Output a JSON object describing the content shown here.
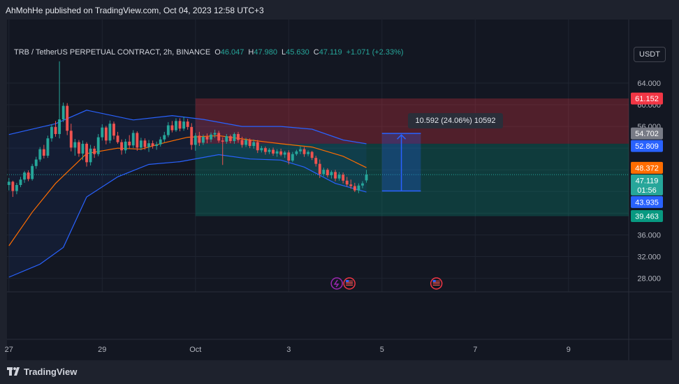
{
  "header": {
    "publish_text": "AhMohHe published on TradingView.com, Oct 04, 2023 12:58 UTC+3"
  },
  "legend": {
    "symbol": "TRB / TetherUS PERPETUAL CONTRACT, 2h, BINANCE",
    "o_label": "O",
    "o_value": "46.047",
    "h_label": "H",
    "h_value": "47.980",
    "l_label": "L",
    "l_value": "45.630",
    "c_label": "C",
    "c_value": "47.119",
    "change": "+1.071 (+2.33%)"
  },
  "currency_button": "USDT",
  "measure_label": "10.592 (24.06%) 10592",
  "footer": {
    "brand": "TradingView"
  },
  "colors": {
    "background": "#131722",
    "up": "#26a69a",
    "down": "#ef5350",
    "band": "#2962ff",
    "basis": "#ff6d00",
    "stop_zone": "#f23645",
    "target_zone": "#089981"
  },
  "chart_data": {
    "type": "candlestick",
    "symbol": "TRB / TetherUS PERPETUAL CONTRACT",
    "interval": "2h",
    "exchange": "BINANCE",
    "ylim": [
      25.5,
      68.5
    ],
    "y_ticks": [
      28,
      32,
      36,
      40,
      44,
      48,
      52,
      56,
      60,
      64
    ],
    "y_tick_labels": [
      "28.000",
      "32.000",
      "36.000",
      "40.000",
      "44.000",
      "48.000",
      "52.000",
      "56.000",
      "60.000",
      "64.000"
    ],
    "x_ticks": [
      {
        "label": "27",
        "t": 0
      },
      {
        "label": "29",
        "t": 24
      },
      {
        "label": "Oct",
        "t": 48
      },
      {
        "label": "3",
        "t": 72
      },
      {
        "label": "5",
        "t": 96
      },
      {
        "label": "7",
        "t": 120
      },
      {
        "label": "9",
        "t": 144
      }
    ],
    "candles": [
      [
        45.2,
        46.5,
        44.2,
        45.8
      ],
      [
        45.8,
        46.0,
        43.0,
        44.1
      ],
      [
        44.1,
        45.6,
        43.5,
        45.2
      ],
      [
        45.2,
        46.7,
        44.8,
        46.2
      ],
      [
        46.2,
        47.8,
        45.6,
        47.5
      ],
      [
        47.5,
        47.9,
        45.9,
        46.3
      ],
      [
        46.3,
        49.1,
        46.0,
        48.7
      ],
      [
        48.7,
        50.4,
        48.2,
        49.9
      ],
      [
        49.9,
        52.2,
        49.5,
        51.8
      ],
      [
        51.8,
        52.6,
        50.1,
        50.6
      ],
      [
        50.6,
        54.3,
        50.2,
        53.8
      ],
      [
        53.8,
        56.4,
        53.2,
        55.9
      ],
      [
        55.9,
        57.0,
        54.1,
        54.6
      ],
      [
        54.6,
        68.0,
        53.8,
        57.3
      ],
      [
        57.3,
        60.4,
        56.8,
        59.8
      ],
      [
        59.8,
        60.3,
        54.4,
        55.2
      ],
      [
        55.2,
        56.5,
        51.4,
        52.1
      ],
      [
        52.1,
        53.7,
        50.6,
        53.1
      ],
      [
        53.1,
        53.5,
        50.4,
        51.0
      ],
      [
        51.0,
        53.4,
        49.8,
        52.8
      ],
      [
        52.8,
        53.1,
        48.6,
        49.4
      ],
      [
        49.4,
        52.6,
        48.8,
        51.9
      ],
      [
        51.9,
        52.4,
        50.2,
        50.9
      ],
      [
        50.9,
        54.6,
        50.5,
        54.0
      ],
      [
        54.0,
        56.4,
        53.4,
        55.8
      ],
      [
        55.8,
        56.1,
        52.7,
        53.4
      ],
      [
        53.4,
        57.1,
        52.9,
        56.5
      ],
      [
        56.5,
        56.9,
        53.6,
        54.3
      ],
      [
        54.3,
        55.0,
        52.8,
        53.1
      ],
      [
        53.1,
        53.6,
        50.8,
        51.6
      ],
      [
        51.6,
        53.7,
        51.0,
        53.2
      ],
      [
        53.2,
        54.4,
        51.9,
        52.5
      ],
      [
        52.5,
        55.3,
        52.0,
        54.8
      ],
      [
        54.8,
        55.1,
        51.5,
        52.1
      ],
      [
        52.1,
        53.9,
        51.6,
        53.4
      ],
      [
        53.4,
        53.8,
        51.7,
        52.2
      ],
      [
        52.2,
        53.5,
        51.3,
        52.9
      ],
      [
        52.9,
        53.4,
        51.9,
        52.4
      ],
      [
        52.4,
        53.2,
        51.7,
        52.7
      ],
      [
        52.7,
        54.1,
        52.3,
        53.6
      ],
      [
        53.6,
        55.0,
        53.1,
        54.4
      ],
      [
        54.4,
        56.8,
        54.0,
        56.2
      ],
      [
        56.2,
        57.0,
        54.9,
        55.3
      ],
      [
        55.3,
        57.5,
        55.0,
        57.0
      ],
      [
        57.0,
        57.5,
        55.1,
        55.6
      ],
      [
        55.6,
        57.8,
        55.2,
        56.9
      ],
      [
        56.9,
        57.4,
        55.4,
        55.9
      ],
      [
        55.9,
        56.6,
        51.7,
        52.6
      ],
      [
        52.6,
        54.8,
        51.5,
        54.3
      ],
      [
        54.3,
        55.0,
        52.4,
        53.0
      ],
      [
        53.0,
        54.5,
        52.6,
        54.1
      ],
      [
        54.1,
        54.7,
        52.9,
        53.6
      ],
      [
        53.6,
        54.9,
        53.1,
        54.5
      ],
      [
        54.5,
        55.4,
        53.9,
        54.8
      ],
      [
        54.8,
        55.2,
        53.0,
        53.4
      ],
      [
        53.4,
        54.0,
        48.9,
        53.2
      ],
      [
        53.2,
        54.6,
        52.8,
        54.2
      ],
      [
        54.2,
        54.5,
        52.9,
        53.3
      ],
      [
        53.3,
        54.9,
        52.8,
        54.6
      ],
      [
        54.6,
        55.0,
        53.0,
        53.5
      ],
      [
        53.5,
        54.1,
        52.1,
        52.6
      ],
      [
        52.6,
        53.9,
        52.2,
        53.5
      ],
      [
        53.5,
        53.8,
        52.0,
        52.4
      ],
      [
        52.4,
        53.6,
        51.9,
        53.1
      ],
      [
        53.1,
        53.5,
        51.1,
        51.6
      ],
      [
        51.6,
        52.4,
        51.2,
        52.0
      ],
      [
        52.0,
        52.3,
        50.8,
        51.3
      ],
      [
        51.3,
        52.0,
        50.9,
        51.7
      ],
      [
        51.7,
        52.1,
        50.6,
        51.0
      ],
      [
        51.0,
        51.8,
        50.4,
        51.4
      ],
      [
        51.4,
        51.9,
        50.5,
        50.8
      ],
      [
        50.8,
        51.5,
        50.2,
        51.2
      ],
      [
        51.2,
        51.6,
        49.0,
        49.7
      ],
      [
        49.7,
        51.3,
        49.4,
        50.9
      ],
      [
        50.9,
        51.7,
        50.6,
        51.4
      ],
      [
        51.4,
        52.3,
        50.9,
        51.8
      ],
      [
        51.8,
        52.2,
        50.4,
        50.9
      ],
      [
        50.9,
        51.6,
        50.5,
        51.3
      ],
      [
        51.3,
        51.5,
        49.8,
        50.2
      ],
      [
        50.2,
        50.6,
        48.6,
        49.1
      ],
      [
        49.1,
        49.9,
        46.5,
        47.2
      ],
      [
        47.2,
        48.4,
        46.8,
        48.0
      ],
      [
        48.0,
        48.3,
        46.6,
        47.0
      ],
      [
        47.0,
        47.9,
        46.4,
        47.6
      ],
      [
        47.6,
        48.0,
        45.9,
        46.4
      ],
      [
        46.4,
        47.6,
        46.0,
        47.1
      ],
      [
        47.1,
        47.5,
        45.5,
        46.0
      ],
      [
        46.0,
        46.7,
        44.9,
        45.3
      ],
      [
        45.3,
        46.2,
        44.5,
        45.0
      ],
      [
        45.0,
        45.6,
        43.9,
        44.2
      ],
      [
        44.2,
        45.5,
        43.7,
        45.1
      ],
      [
        45.1,
        45.9,
        44.6,
        45.5
      ],
      [
        46.05,
        47.98,
        45.63,
        47.12
      ]
    ],
    "indicators": {
      "bollinger_upper": [
        [
          0,
          54.5
        ],
        [
          12,
          56.5
        ],
        [
          20,
          59.0
        ],
        [
          32,
          57.2
        ],
        [
          42,
          58.0
        ],
        [
          50,
          57.3
        ],
        [
          60,
          56.0
        ],
        [
          70,
          56.0
        ],
        [
          78,
          55.5
        ],
        [
          86,
          53.5
        ],
        [
          92,
          52.8
        ]
      ],
      "bollinger_basis": [
        [
          0,
          34.0
        ],
        [
          6,
          40.2
        ],
        [
          12,
          45.5
        ],
        [
          20,
          51.0
        ],
        [
          28,
          52.0
        ],
        [
          34,
          51.8
        ],
        [
          40,
          53.0
        ],
        [
          46,
          54.0
        ],
        [
          54,
          54.3
        ],
        [
          62,
          53.5
        ],
        [
          70,
          52.8
        ],
        [
          78,
          52.2
        ],
        [
          86,
          50.5
        ],
        [
          92,
          48.4
        ]
      ],
      "bollinger_lower": [
        [
          0,
          28.2
        ],
        [
          8,
          30.6
        ],
        [
          14,
          33.7
        ],
        [
          20,
          43.0
        ],
        [
          28,
          46.7
        ],
        [
          36,
          49.0
        ],
        [
          44,
          49.5
        ],
        [
          54,
          50.8
        ],
        [
          62,
          50.0
        ],
        [
          70,
          49.8
        ],
        [
          76,
          48.5
        ],
        [
          84,
          45.5
        ],
        [
          92,
          43.9
        ]
      ]
    },
    "position_tool": {
      "entry": 52.809,
      "stop": 61.152,
      "target": 39.463,
      "t_start": 48,
      "t_end": 168
    },
    "measure": {
      "from": 44.11,
      "to": 54.702,
      "t_start": 96,
      "t_end": 106,
      "label": "10.592 (24.06%) 10592"
    },
    "price_labels": [
      {
        "value": 61.152,
        "text": "61.152",
        "color": "#f23645"
      },
      {
        "value": 54.702,
        "text": "54.702",
        "color": "#787b86"
      },
      {
        "value": 52.809,
        "text": "52.809",
        "color": "#2962ff"
      },
      {
        "value": 48.372,
        "text": "48.372",
        "color": "#ff6d00"
      },
      {
        "value": 47.119,
        "text": "47.119",
        "sub": "01:56",
        "color": "#26a69a"
      },
      {
        "value": 43.935,
        "text": "43.935",
        "color": "#2962ff"
      },
      {
        "value": 39.463,
        "text": "39.463",
        "color": "#089981"
      }
    ],
    "event_markers": [
      {
        "t": 86,
        "icons": [
          "dividend-icon",
          "us-flag-icon"
        ]
      },
      {
        "t": 110,
        "icons": [
          "us-flag-icon"
        ]
      }
    ],
    "grid": true
  }
}
